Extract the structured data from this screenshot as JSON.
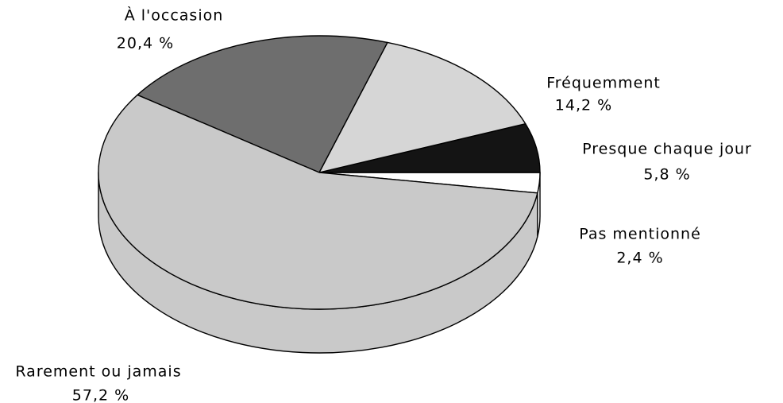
{
  "chart_data": {
    "type": "pie3d",
    "categories": [
      "Pas mentionné",
      "Presque chaque jour",
      "Fréquemment",
      "À l'occasion",
      "Rarement ou jamais"
    ],
    "values": [
      2.4,
      5.8,
      14.2,
      20.4,
      57.2
    ],
    "value_labels": [
      "2,4 %",
      "5,8 %",
      "14,2 %",
      "20,4 %",
      "57,2 %"
    ],
    "colors": [
      "#ffffff",
      "#141414",
      "#d6d6d6",
      "#6e6e6e",
      "#c9c9c9"
    ]
  }
}
